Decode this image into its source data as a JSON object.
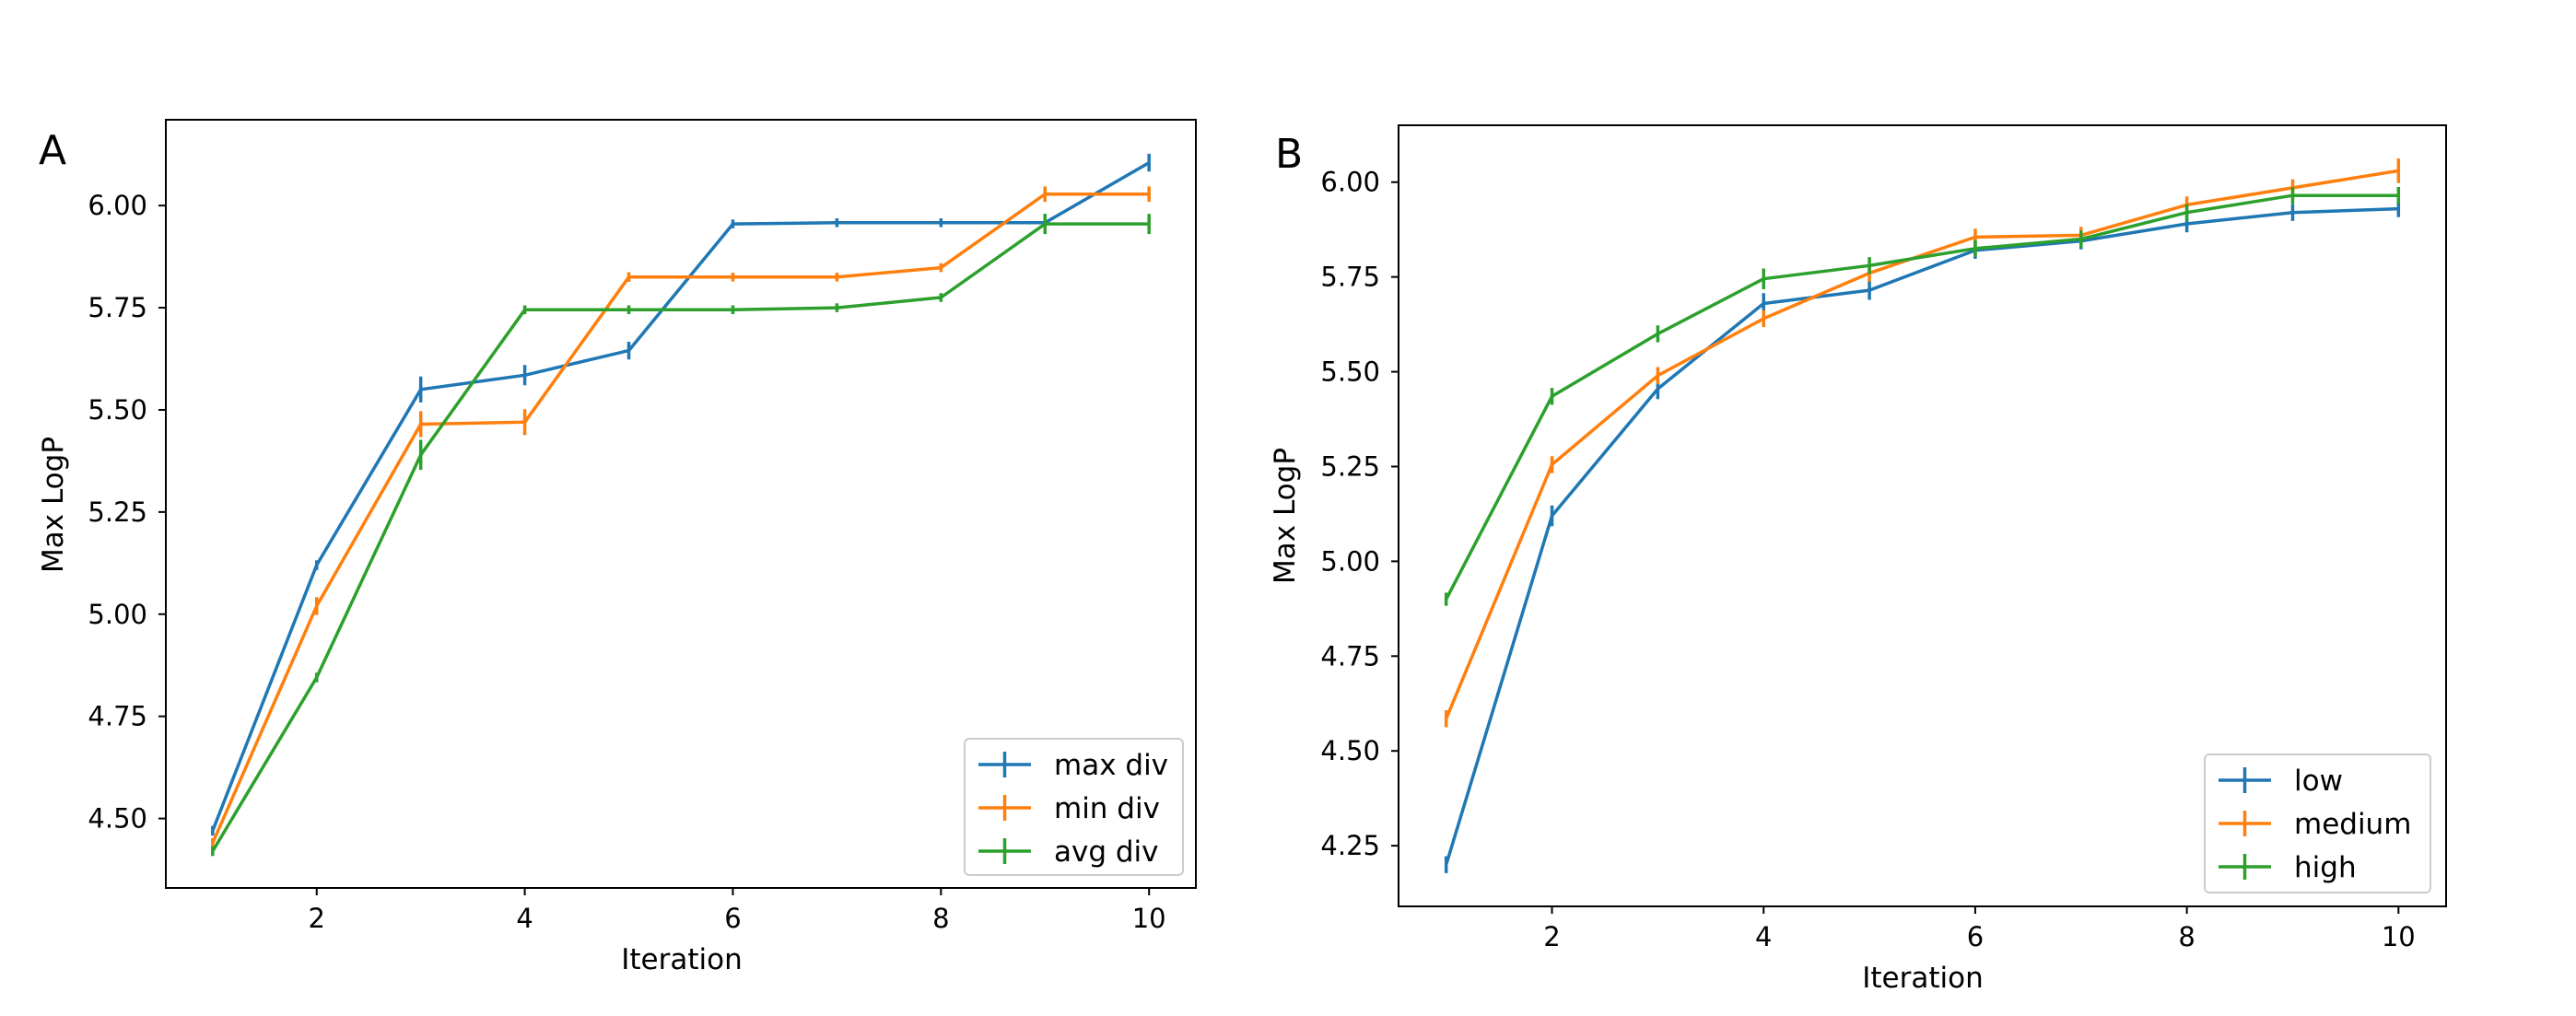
{
  "figure": {
    "colors": {
      "series1": "#1f77b4",
      "series2": "#ff7f0e",
      "series3": "#2ca02c"
    }
  },
  "chart_data": [
    {
      "panel": "A",
      "type": "line",
      "title": "",
      "xlabel": "Iteration",
      "ylabel": "Max LogP",
      "xlim": [
        0.55,
        10.45
      ],
      "ylim": [
        4.33,
        6.21
      ],
      "xticks": [
        2,
        4,
        6,
        8,
        10
      ],
      "yticks": [
        4.5,
        4.75,
        5.0,
        5.25,
        5.5,
        5.75,
        6.0
      ],
      "ytick_labels": [
        "4.50",
        "4.75",
        "5.00",
        "5.25",
        "5.50",
        "5.75",
        "6.00"
      ],
      "legend_position": "lower-right",
      "x": [
        1,
        2,
        3,
        4,
        5,
        6,
        7,
        8,
        9,
        10
      ],
      "series": [
        {
          "name": "max div",
          "color": "#1f77b4",
          "values": [
            4.47,
            5.12,
            5.55,
            5.585,
            5.645,
            5.955,
            5.958,
            5.958,
            5.958,
            6.105
          ],
          "errors": [
            0.005,
            0.005,
            0.025,
            0.018,
            0.015,
            0.004,
            0.004,
            0.004,
            0.015,
            0.015
          ]
        },
        {
          "name": "min div",
          "color": "#ff7f0e",
          "values": [
            4.44,
            5.02,
            5.465,
            5.47,
            5.825,
            5.825,
            5.825,
            5.848,
            6.028,
            6.028
          ],
          "errors": [
            0.005,
            0.015,
            0.025,
            0.025,
            0.005,
            0.004,
            0.004,
            0.004,
            0.012,
            0.012
          ]
        },
        {
          "name": "avg div",
          "color": "#2ca02c",
          "values": [
            4.42,
            4.845,
            5.39,
            5.745,
            5.745,
            5.745,
            5.75,
            5.775,
            5.955,
            5.955
          ],
          "errors": [
            0.005,
            0.005,
            0.03,
            0.004,
            0.004,
            0.004,
            0.004,
            0.004,
            0.018,
            0.018
          ]
        }
      ]
    },
    {
      "panel": "B",
      "type": "line",
      "title": "",
      "xlabel": "Iteration",
      "ylabel": "Max LogP",
      "xlim": [
        0.55,
        10.45
      ],
      "ylim": [
        4.09,
        6.15
      ],
      "xticks": [
        2,
        4,
        6,
        8,
        10
      ],
      "yticks": [
        4.25,
        4.5,
        4.75,
        5.0,
        5.25,
        5.5,
        5.75,
        6.0
      ],
      "ytick_labels": [
        "4.25",
        "4.50",
        "4.75",
        "5.00",
        "5.25",
        "5.50",
        "5.75",
        "6.00"
      ],
      "legend_position": "lower-right",
      "x": [
        1,
        2,
        3,
        4,
        5,
        6,
        7,
        8,
        9,
        10
      ],
      "series": [
        {
          "name": "low",
          "color": "#1f77b4",
          "values": [
            4.2,
            5.12,
            5.455,
            5.68,
            5.715,
            5.82,
            5.845,
            5.89,
            5.92,
            5.93
          ],
          "errors": [
            0.015,
            0.02,
            0.02,
            0.02,
            0.018,
            0.015,
            0.015,
            0.015,
            0.015,
            0.015
          ]
        },
        {
          "name": "medium",
          "color": "#ff7f0e",
          "values": [
            4.585,
            5.255,
            5.49,
            5.64,
            5.76,
            5.855,
            5.86,
            5.94,
            5.985,
            6.03
          ],
          "errors": [
            0.015,
            0.015,
            0.015,
            0.015,
            0.015,
            0.015,
            0.015,
            0.015,
            0.015,
            0.025
          ]
        },
        {
          "name": "high",
          "color": "#2ca02c",
          "values": [
            4.9,
            5.435,
            5.6,
            5.745,
            5.78,
            5.825,
            5.85,
            5.92,
            5.965,
            5.965
          ],
          "errors": [
            0.01,
            0.015,
            0.015,
            0.02,
            0.015,
            0.015,
            0.015,
            0.015,
            0.015,
            0.015
          ]
        }
      ]
    }
  ]
}
